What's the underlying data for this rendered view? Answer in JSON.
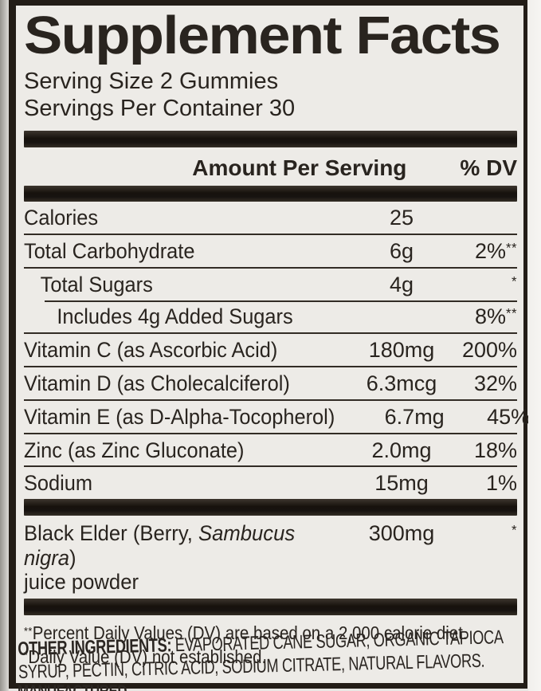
{
  "label": {
    "title": "Supplement Facts",
    "serving_size": "Serving Size 2 Gummies",
    "servings_per_container": "Servings Per Container 30",
    "header": {
      "amount": "Amount Per Serving",
      "dv": "% DV"
    },
    "rows": [
      {
        "name": "Calories",
        "amount": "25",
        "dv": "",
        "dv_note": "",
        "indent": 0
      },
      {
        "name": "Total Carbohydrate",
        "amount": "6g",
        "dv": "2%",
        "dv_note": "**",
        "indent": 0
      },
      {
        "name": "Total Sugars",
        "amount": "4g",
        "dv": "",
        "dv_note": "*",
        "indent": 1
      },
      {
        "name": "Includes 4g Added Sugars",
        "amount": "",
        "dv": "8%",
        "dv_note": "**",
        "indent": 2,
        "line_indent": true
      },
      {
        "name": "Vitamin C (as Ascorbic Acid)",
        "amount": "180mg",
        "dv": "200%",
        "dv_note": "",
        "indent": 0
      },
      {
        "name": "Vitamin D (as Cholecalciferol)",
        "amount": "6.3mcg",
        "dv": "32%",
        "dv_note": "",
        "indent": 0
      },
      {
        "name": "Vitamin E (as D-Alpha-Tocopherol)",
        "amount": "6.7mg",
        "dv": "45%",
        "dv_note": "",
        "indent": 0
      },
      {
        "name": "Zinc (as Zinc Gluconate)",
        "amount": "2.0mg",
        "dv": "18%",
        "dv_note": "",
        "indent": 0
      },
      {
        "name": "Sodium",
        "amount": "15mg",
        "dv": "1%",
        "dv_note": "",
        "indent": 0
      }
    ],
    "botanical": {
      "pre": "Black Elder (Berry, ",
      "italic": "Sambucus nigra",
      "post": ")",
      "line2": "juice powder",
      "amount": "300mg",
      "dv_note": "*"
    },
    "footnotes": [
      {
        "mark": "**",
        "text": "Percent Daily Values (DV) are based on a 2,000 calorie diet."
      },
      {
        "mark": "*",
        "text": "Daily Value (DV) not established."
      }
    ]
  },
  "below": {
    "other_ingredients_label": "OTHER INGREDIENTS:",
    "other_ingredients": " EVAPORATED CANE SUGAR, ORGANIC TAPIOCA SYRUP, PECTIN, CITRIC ACID, SODIUM CITRATE, NATURAL FLAVORS.",
    "partial_bottom_line": "MANUFACTURED"
  },
  "colors": {
    "ink": "#29241f",
    "bar": "#17120d",
    "label_bg": "#edebe7",
    "page_bg": "#edebe8"
  }
}
